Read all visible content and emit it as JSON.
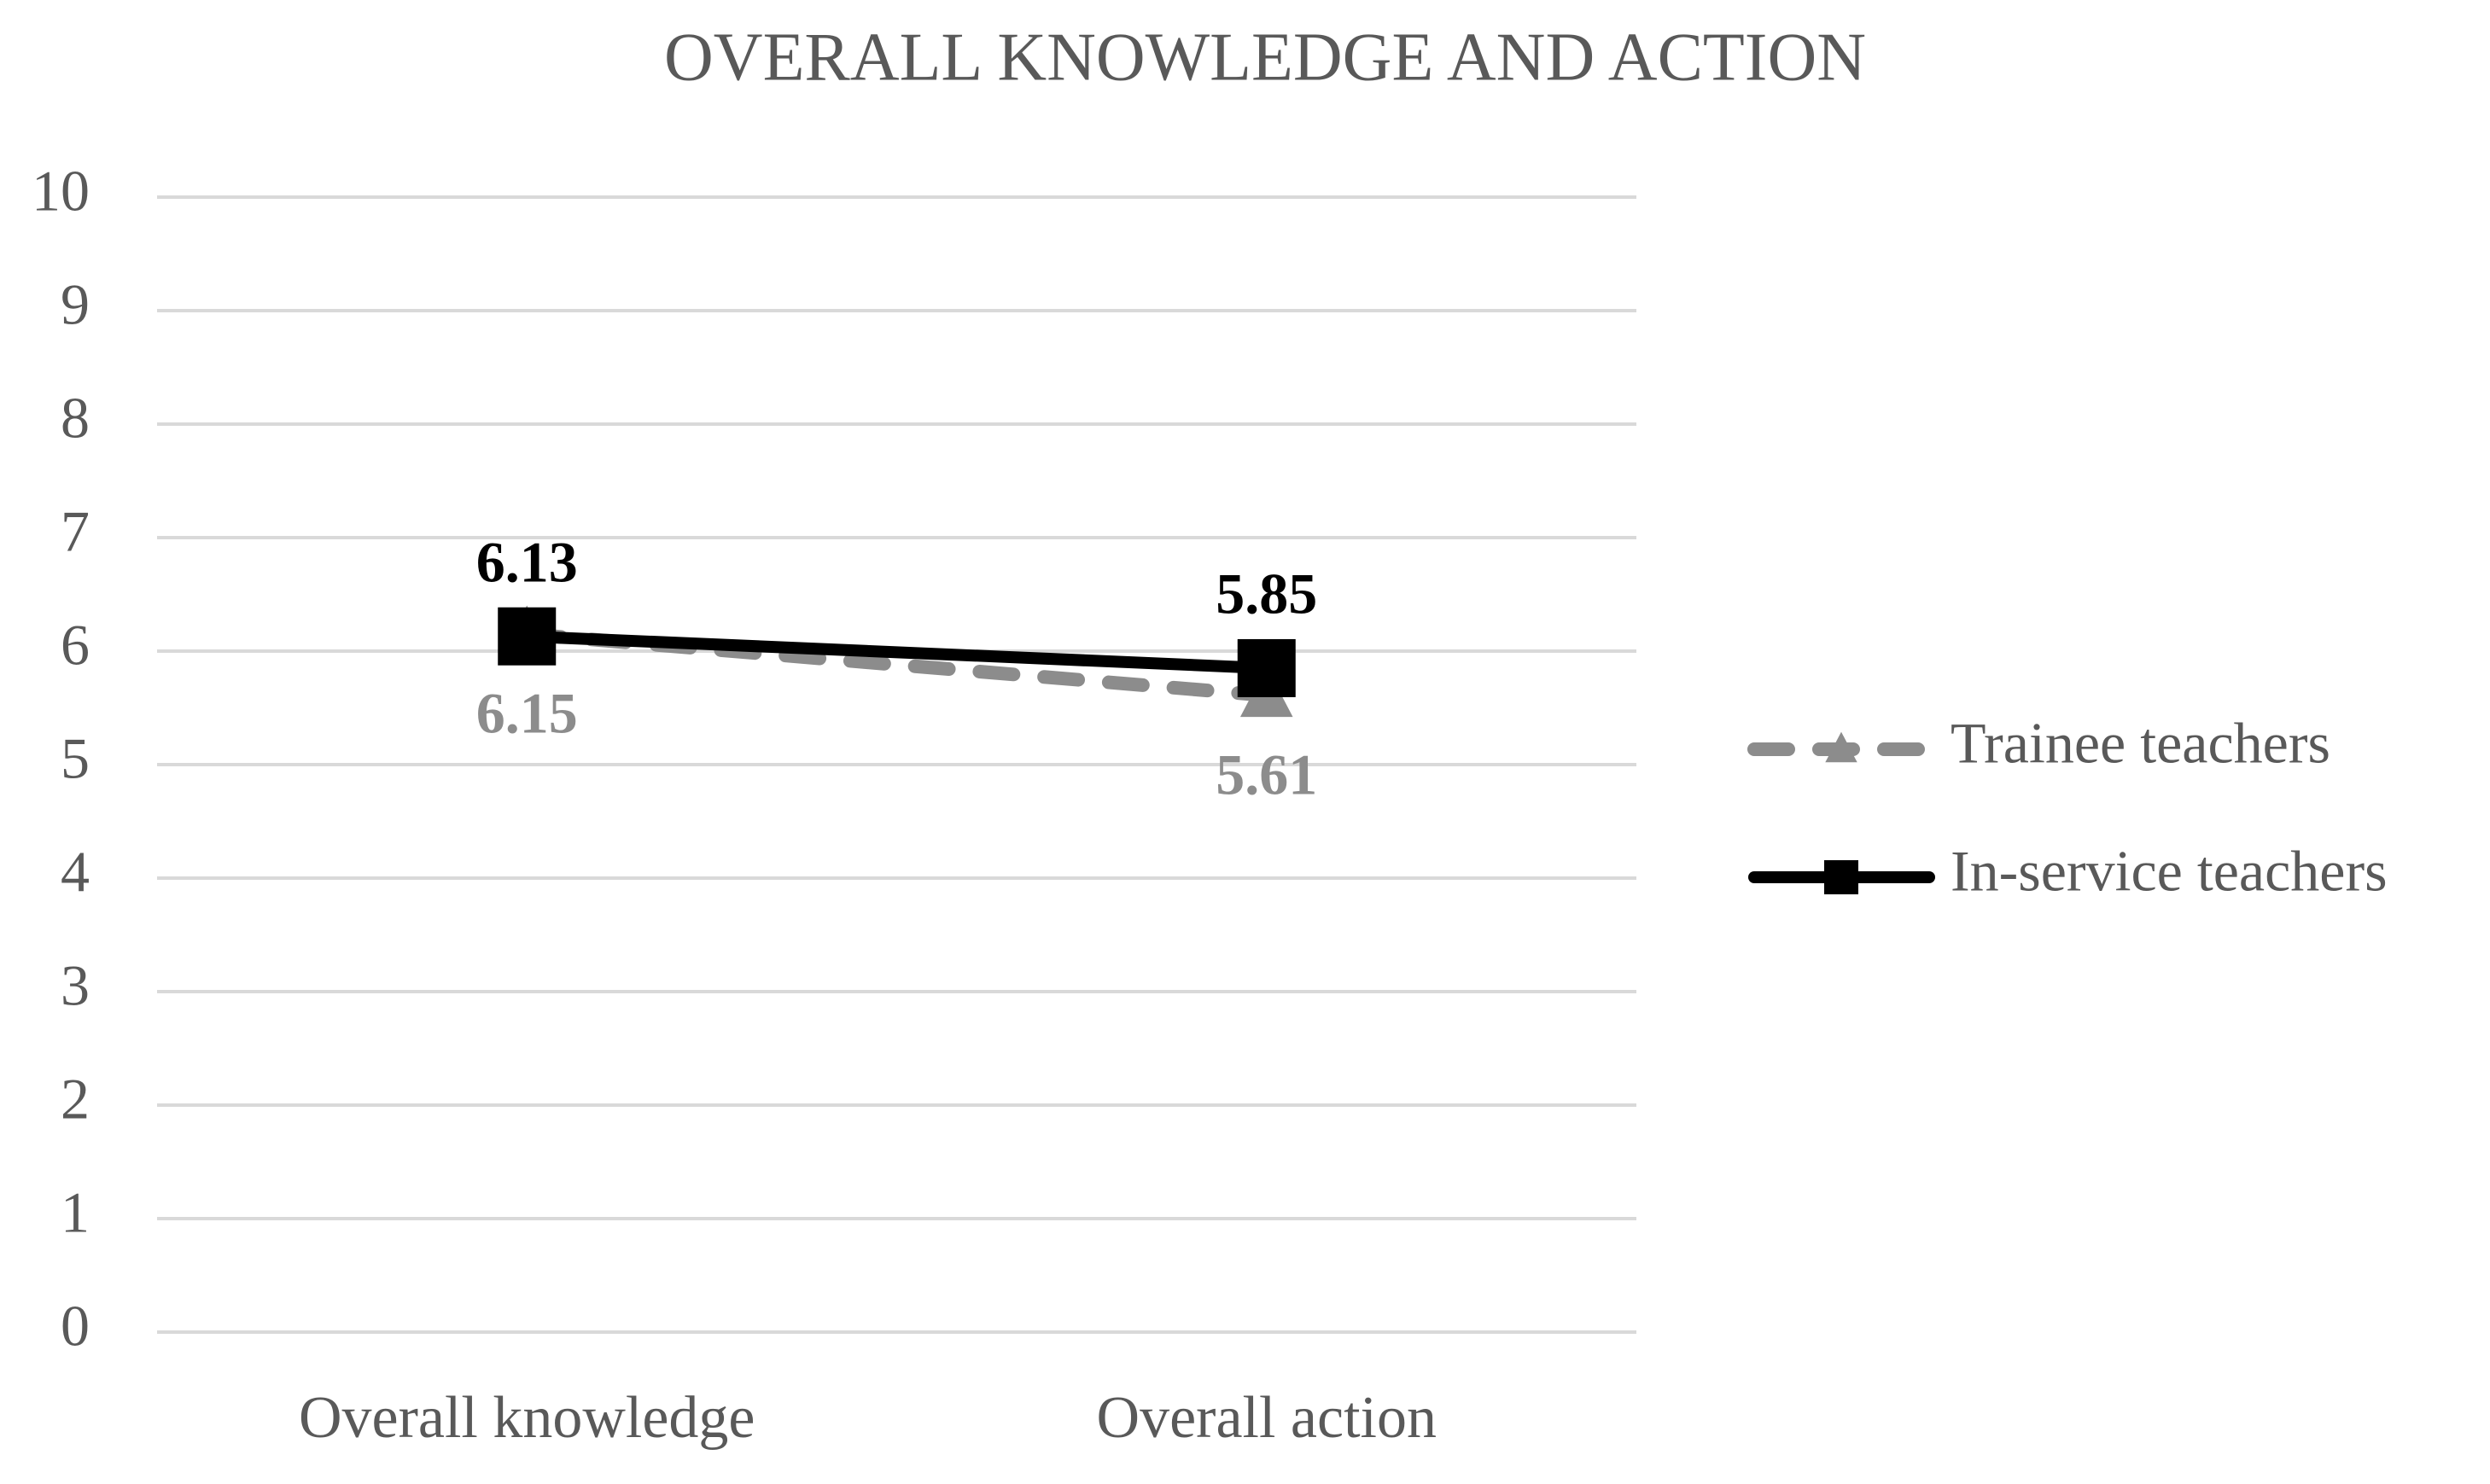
{
  "chart_data": {
    "type": "line",
    "title": "OVERALL KNOWLEDGE AND ACTION",
    "categories": [
      "Overall knowledge",
      "Overall action"
    ],
    "series": [
      {
        "name": "Trainee teachers",
        "color": "#8c8c8c",
        "dash": true,
        "marker": "triangle",
        "label_position": "below",
        "values": [
          6.15,
          5.61
        ]
      },
      {
        "name": "In-service teachers",
        "color": "#000000",
        "dash": false,
        "marker": "square",
        "label_position": "above",
        "values": [
          6.13,
          5.85
        ]
      }
    ],
    "ylim": [
      0,
      10
    ],
    "yticks": [
      0,
      1,
      2,
      3,
      4,
      5,
      6,
      7,
      8,
      9,
      10
    ],
    "grid": true,
    "legend": "right"
  }
}
